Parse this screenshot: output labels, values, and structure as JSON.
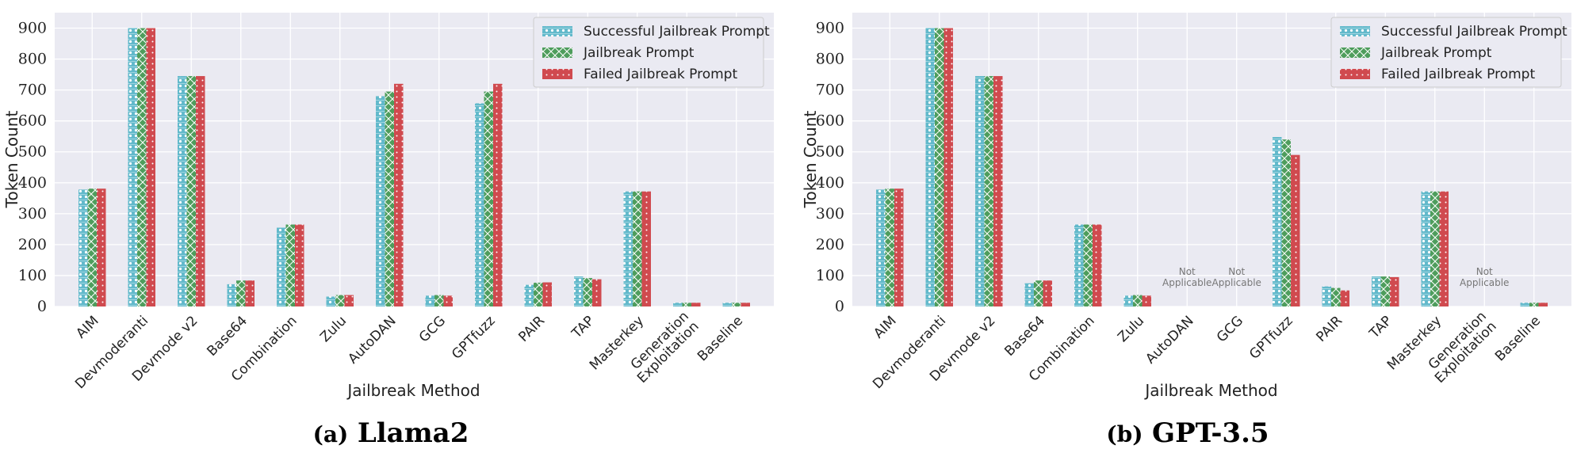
{
  "colors": {
    "successful": "#62b9cb",
    "jailbreak": "#4e9d5c",
    "failed": "#d04a4f",
    "plot_bg": "#eaeaf2"
  },
  "legend_position": "top-right",
  "grid": true,
  "chart_data": [
    {
      "type": "bar",
      "caption": "(a) Llama2",
      "caption_prefix": "(a)",
      "caption_model": "Llama2",
      "xlabel": "Jailbreak Method",
      "ylabel": "Token Count",
      "ylim": [
        0,
        950
      ],
      "yticks": [
        0,
        100,
        200,
        300,
        400,
        500,
        600,
        700,
        800,
        900
      ],
      "categories": [
        "AIM",
        "Devmoderanti",
        "Devmode v2",
        "Base64",
        "Combination",
        "Zulu",
        "AutoDAN",
        "GCG",
        "GPTfuzz",
        "PAIR",
        "TAP",
        "Masterkey",
        "Generation Exploitation",
        "Baseline"
      ],
      "not_applicable": [],
      "series": [
        {
          "name": "Successful Jailbreak Prompt",
          "values": [
            378,
            900,
            745,
            72,
            255,
            32,
            680,
            35,
            657,
            70,
            97,
            372,
            12,
            12
          ]
        },
        {
          "name": "Jailbreak Prompt",
          "values": [
            381,
            900,
            745,
            84,
            265,
            37,
            695,
            37,
            695,
            77,
            92,
            372,
            12,
            12
          ]
        },
        {
          "name": "Failed Jailbreak Prompt",
          "values": [
            381,
            900,
            745,
            84,
            265,
            37,
            720,
            35,
            720,
            78,
            88,
            372,
            12,
            12
          ]
        }
      ]
    },
    {
      "type": "bar",
      "caption": "(b) GPT-3.5",
      "caption_prefix": "(b)",
      "caption_model": "GPT-3.5",
      "xlabel": "Jailbreak Method",
      "ylabel": "Token Count",
      "ylim": [
        0,
        950
      ],
      "yticks": [
        0,
        100,
        200,
        300,
        400,
        500,
        600,
        700,
        800,
        900
      ],
      "categories": [
        "AIM",
        "Devmoderanti",
        "Devmode v2",
        "Base64",
        "Combination",
        "Zulu",
        "AutoDAN",
        "GCG",
        "GPTfuzz",
        "PAIR",
        "TAP",
        "Masterkey",
        "Generation Exploitation",
        "Baseline"
      ],
      "not_applicable_label": "Not Applicable",
      "not_applicable": [
        "AutoDAN",
        "GCG",
        "Generation Exploitation"
      ],
      "series": [
        {
          "name": "Successful Jailbreak Prompt",
          "values": [
            378,
            900,
            745,
            75,
            265,
            35,
            null,
            null,
            548,
            65,
            97,
            372,
            null,
            12
          ]
        },
        {
          "name": "Jailbreak Prompt",
          "values": [
            381,
            900,
            745,
            84,
            265,
            37,
            null,
            null,
            540,
            60,
            97,
            372,
            null,
            12
          ]
        },
        {
          "name": "Failed Jailbreak Prompt",
          "values": [
            381,
            900,
            745,
            84,
            265,
            35,
            null,
            null,
            490,
            52,
            95,
            372,
            null,
            12
          ]
        }
      ]
    }
  ]
}
